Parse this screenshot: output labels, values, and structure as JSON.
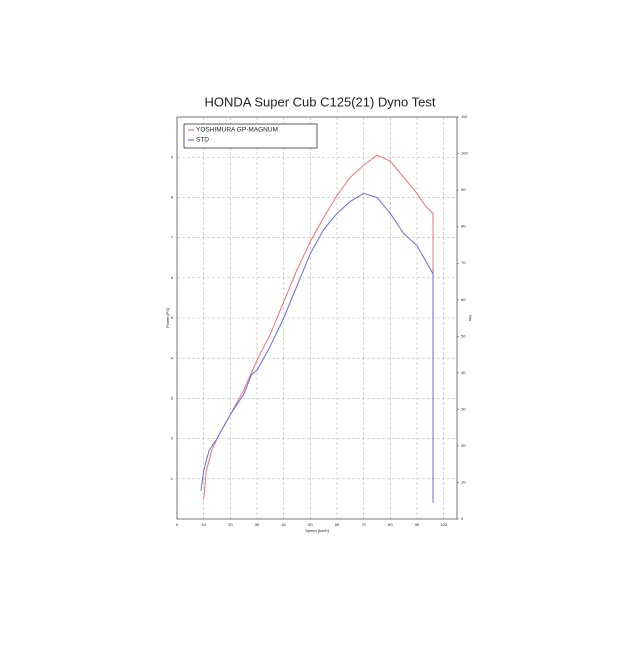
{
  "chart_data": {
    "type": "line",
    "title": "HONDA Super Cub C125(21) Dyno Test",
    "x_label": "Speed [km/h]",
    "y_label": "Power [PS]",
    "y2_label": "Nm",
    "xlim": [
      0,
      105
    ],
    "xticks": [
      0,
      10,
      20,
      30,
      40,
      50,
      60,
      70,
      80,
      90,
      100
    ],
    "ylim": [
      0,
      10
    ],
    "yticks": [
      1,
      2,
      3,
      4,
      5,
      6,
      7,
      8,
      9
    ],
    "y2lim": [
      0,
      110
    ],
    "y2ticks": [
      0,
      10,
      20,
      30,
      40,
      50,
      60,
      70,
      80,
      90,
      100,
      110
    ],
    "grid": true,
    "legend": "upper left",
    "series": [
      {
        "name": "YOSHIMURA GP-MAGNUM",
        "color": "#f07070",
        "x": [
          10,
          11,
          13,
          15,
          20,
          25,
          30,
          35,
          40,
          45,
          50,
          55,
          60,
          65,
          70,
          75,
          80,
          85,
          90,
          93,
          96,
          96,
          96
        ],
        "values": [
          0.5,
          1.2,
          1.7,
          2.0,
          2.6,
          3.2,
          3.95,
          4.6,
          5.4,
          6.2,
          6.9,
          7.5,
          8.05,
          8.5,
          8.8,
          9.05,
          8.9,
          8.5,
          8.1,
          7.8,
          7.6,
          2.0,
          0.5
        ]
      },
      {
        "name": "STD",
        "color": "#6a6ae0",
        "x": [
          9,
          10,
          12,
          15,
          20,
          25,
          28,
          30,
          35,
          40,
          45,
          50,
          55,
          60,
          65,
          70,
          75,
          80,
          85,
          90,
          96,
          96,
          96
        ],
        "values": [
          0.7,
          1.2,
          1.7,
          2.0,
          2.6,
          3.1,
          3.6,
          3.7,
          4.3,
          5.0,
          5.8,
          6.6,
          7.2,
          7.6,
          7.9,
          8.1,
          8.0,
          7.6,
          7.1,
          6.8,
          6.1,
          3.6,
          0.4
        ]
      }
    ]
  }
}
